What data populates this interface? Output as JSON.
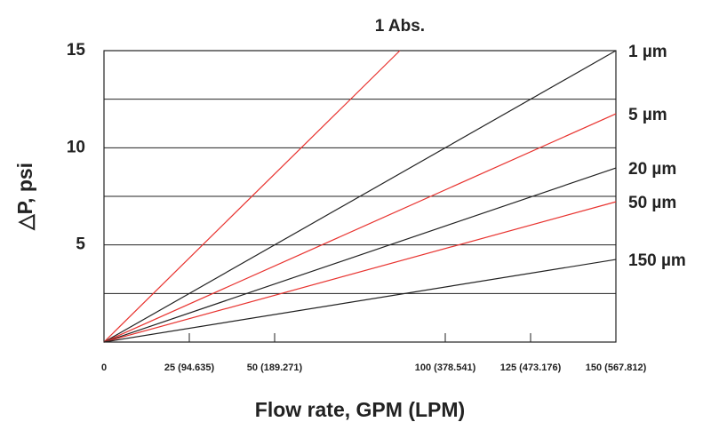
{
  "chart_data": {
    "type": "line",
    "xlabel": "Flow rate, GPM (LPM)",
    "ylabel": "△P, psi",
    "xlim": [
      0,
      150
    ],
    "ylim": [
      0,
      15
    ],
    "xticks": [
      0,
      {
        "value": 25,
        "label": "25 (94.635)"
      },
      {
        "value": 50,
        "label": "50 (189.271)"
      },
      {
        "value": 100,
        "label": "100 (378.541)"
      },
      {
        "value": 125,
        "label": "125 (473.176)"
      },
      {
        "value": 150,
        "label": "150 (567.812)"
      }
    ],
    "yticks": [
      5,
      10,
      15
    ],
    "minor_yticks": [
      2.5,
      7.5,
      12.5
    ],
    "grid": true,
    "series": [
      {
        "name": "1 Abs.",
        "color": "#e8332f",
        "x": [
          0,
          86.7
        ],
        "values": [
          0,
          15
        ]
      },
      {
        "name": "1 µm",
        "color": "#222222",
        "x": [
          0,
          150
        ],
        "values": [
          0,
          15
        ]
      },
      {
        "name": "5 µm",
        "color": "#e8332f",
        "x": [
          0,
          150
        ],
        "values": [
          0,
          11.75
        ]
      },
      {
        "name": "20 µm",
        "color": "#222222",
        "x": [
          0,
          150
        ],
        "values": [
          0,
          8.96
        ]
      },
      {
        "name": "50 µm",
        "color": "#e8332f",
        "x": [
          0,
          150
        ],
        "values": [
          0,
          7.22
        ]
      },
      {
        "name": "150 µm",
        "color": "#222222",
        "x": [
          0,
          150
        ],
        "values": [
          0,
          4.25
        ]
      }
    ]
  }
}
